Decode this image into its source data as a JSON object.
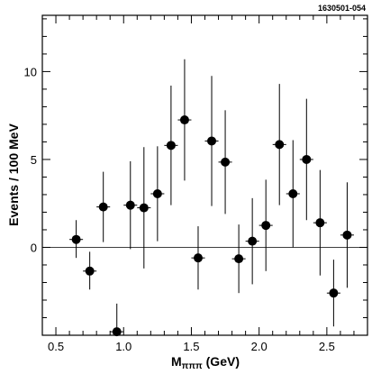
{
  "figure_id": "1630501-054",
  "chart_data": {
    "type": "scatter",
    "xlabel": "M",
    "xlabel_subscript": "πππ",
    "xlabel_unit": "(GeV)",
    "ylabel": "Events / 100 MeV",
    "xlim": [
      0.4,
      2.8
    ],
    "ylim": [
      -5,
      13.2
    ],
    "x_ticks": [
      0.5,
      1.0,
      1.5,
      2.0,
      2.5
    ],
    "x_tick_labels": [
      "0.5",
      "1.0",
      "1.5",
      "2.0",
      "2.5"
    ],
    "y_ticks": [
      0,
      5,
      10
    ],
    "y_tick_labels": [
      "0",
      "5",
      "10"
    ],
    "zero_line": true,
    "grid": false,
    "points": [
      {
        "x": 0.65,
        "y": 0.45,
        "err_low": 1.05,
        "err_high": 1.1
      },
      {
        "x": 0.75,
        "y": -1.35,
        "err_low": 1.05,
        "err_high": 1.1
      },
      {
        "x": 0.85,
        "y": 2.3,
        "err_low": 2.0,
        "err_high": 2.0
      },
      {
        "x": 0.95,
        "y": -4.8,
        "err_low": 0.0,
        "err_high": 1.6
      },
      {
        "x": 1.05,
        "y": 2.4,
        "err_low": 2.5,
        "err_high": 2.5
      },
      {
        "x": 1.15,
        "y": 2.25,
        "err_low": 3.45,
        "err_high": 3.45
      },
      {
        "x": 1.25,
        "y": 3.05,
        "err_low": 2.7,
        "err_high": 2.7
      },
      {
        "x": 1.35,
        "y": 5.8,
        "err_low": 3.4,
        "err_high": 3.4
      },
      {
        "x": 1.45,
        "y": 7.25,
        "err_low": 3.45,
        "err_high": 3.45
      },
      {
        "x": 1.55,
        "y": -0.6,
        "err_low": 1.8,
        "err_high": 1.8
      },
      {
        "x": 1.65,
        "y": 6.05,
        "err_low": 3.7,
        "err_high": 3.7
      },
      {
        "x": 1.75,
        "y": 4.85,
        "err_low": 2.95,
        "err_high": 2.95
      },
      {
        "x": 1.85,
        "y": -0.65,
        "err_low": 1.95,
        "err_high": 1.95
      },
      {
        "x": 1.95,
        "y": 0.35,
        "err_low": 2.45,
        "err_high": 2.45
      },
      {
        "x": 2.05,
        "y": 1.25,
        "err_low": 2.6,
        "err_high": 2.6
      },
      {
        "x": 2.15,
        "y": 5.85,
        "err_low": 3.45,
        "err_high": 3.45
      },
      {
        "x": 2.25,
        "y": 3.05,
        "err_low": 3.05,
        "err_high": 3.05
      },
      {
        "x": 2.35,
        "y": 5.0,
        "err_low": 3.45,
        "err_high": 3.45
      },
      {
        "x": 2.45,
        "y": 1.4,
        "err_low": 3.0,
        "err_high": 3.0
      },
      {
        "x": 2.55,
        "y": -2.6,
        "err_low": 1.9,
        "err_high": 1.9
      },
      {
        "x": 2.65,
        "y": 0.7,
        "err_low": 3.0,
        "err_high": 3.0
      }
    ]
  }
}
